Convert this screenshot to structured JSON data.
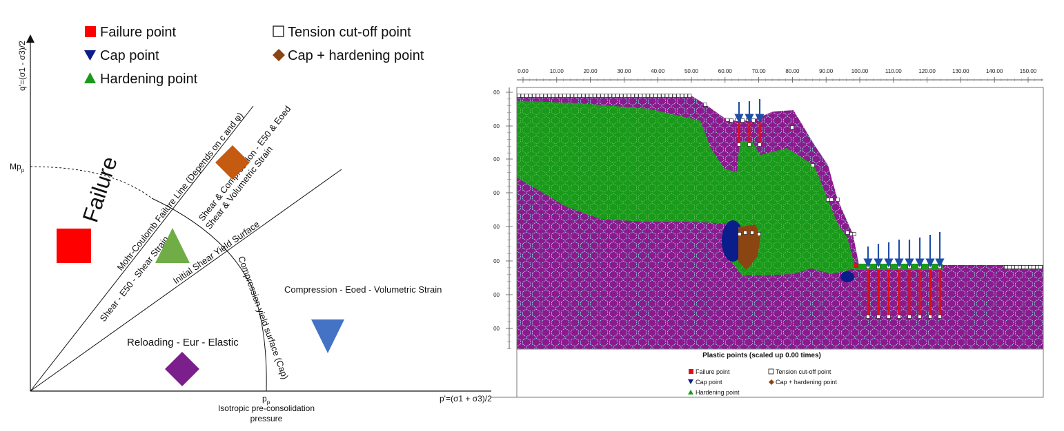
{
  "left_diagram": {
    "legend": [
      {
        "label": "Failure point",
        "marker": "red-square-icon"
      },
      {
        "label": "Tension cut-off point",
        "marker": "white-square-icon"
      },
      {
        "label": "Cap point",
        "marker": "navy-down-triangle-icon"
      },
      {
        "label": "Cap + hardening point",
        "marker": "brown-diamond-icon"
      },
      {
        "label": "Hardening point",
        "marker": "green-up-triangle-icon"
      }
    ],
    "y_axis_label": "q'=(σ1 - σ3)/2",
    "x_axis_label": "p'=(σ1 + σ3)/2",
    "mp_label": "Mp",
    "mp_sub": "p",
    "pp_label": "p",
    "pp_sub": "p",
    "pp_caption_line1": "Isotropic pre-consolidation",
    "pp_caption_line2": "pressure",
    "failure_region_label": "Failure",
    "mohr_coulomb_line_label": "Mohr-Coulomb Failure Line (Depends on c and φ)",
    "shear_compression_label_1": "Shear & Compression - E50 & Eoed",
    "shear_compression_label_2": "Shear & Volumetric Strain",
    "initial_shear_yield_label": "Initial Shear Yield Surface",
    "shear_region_label": "Shear - E50 - Shear Strain",
    "cap_label": "Compression yield surface (Cap)",
    "compression_region_label": "Compression - Eoed - Volumetric Strain",
    "reloading_region_label": "Reloading - Eur - Elastic",
    "colors": {
      "failure_square": "#ff0000",
      "shear_compression_diamond": "#c55a11",
      "hardening_triangle": "#70ad47",
      "cap_triangle": "#4472c4",
      "reloading_diamond": "#7b1f8c"
    }
  },
  "right_plot": {
    "x_ticks": [
      "0.00",
      "10.00",
      "20.00",
      "30.00",
      "40.00",
      "50.00",
      "60.00",
      "70.00",
      "80.00",
      "90.00",
      "100.00",
      "110.00",
      "120.00",
      "130.00",
      "140.00",
      "150.00"
    ],
    "y_ticks": [
      "00",
      "00",
      "00",
      "00",
      "00",
      "00",
      "00",
      "00",
      "00"
    ],
    "title": "Plastic points (scaled up 0.00 times)",
    "legend": [
      {
        "label": "Failure point",
        "marker": "red-square-icon"
      },
      {
        "label": "Tension cut-off point",
        "marker": "white-square-icon"
      },
      {
        "label": "Cap point",
        "marker": "navy-down-triangle-icon"
      },
      {
        "label": "Cap + hardening point",
        "marker": "brown-diamond-icon"
      },
      {
        "label": "Hardening point",
        "marker": "green-up-triangle-icon"
      }
    ],
    "colors": {
      "soil": "#8b1a8e",
      "mesh": "#8fd0d8",
      "hardening": "#1a9a1a",
      "cap": "#0a1d8a",
      "cap_hardening": "#8b4513",
      "failure": "#e01010",
      "load_arrow": "#1f4ea8"
    }
  }
}
